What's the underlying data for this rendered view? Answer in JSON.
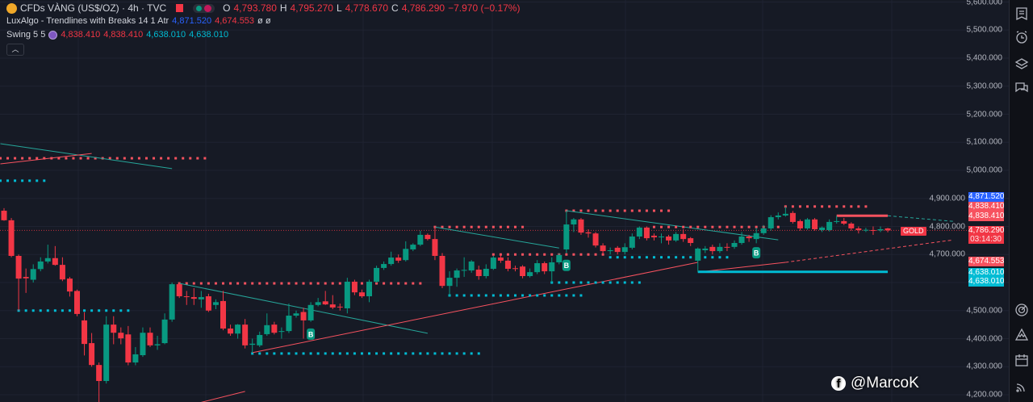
{
  "header": {
    "symbol_title": "CFDs VÀNG (US$/OZ) · 4h · TVC",
    "ohlc": {
      "o_label": "O",
      "o": "4,793.780",
      "h_label": "H",
      "h": "4,795.270",
      "l_label": "L",
      "l": "4,778.670",
      "c_label": "C",
      "c": "4,786.290",
      "change": "−7.970 (−0.17%)"
    },
    "indicator1": {
      "name": "LuxAlgo - Trendlines with Breaks 14 1 Atr",
      "v1": "4,871.520",
      "v2": "4,674.553",
      "v3": "ø ø"
    },
    "indicator2": {
      "name": "Swing 5 5",
      "v1": "4,838.410",
      "v2": "4,838.410",
      "v3": "4,638.010",
      "v4": "4,638.010"
    },
    "collapse_icon": "chevron-up-icon"
  },
  "price_axis": {
    "ticks": [
      "5,600.000",
      "5,500.000",
      "5,400.000",
      "5,300.000",
      "5,200.000",
      "5,100.000",
      "5,000.000",
      "4,900.000",
      "4,800.000",
      "4,700.000",
      "4,500.000",
      "4,400.000",
      "4,300.000",
      "4,200.000"
    ],
    "tags": [
      {
        "text": "4,871.520",
        "color": "#2962ff"
      },
      {
        "text": "4,838.410",
        "color": "#f7525f"
      },
      {
        "text": "4,838.410",
        "color": "#f7525f"
      },
      {
        "text": "4,674.553",
        "color": "#f7525f"
      },
      {
        "text": "4,638.010",
        "color": "#00bcd4"
      },
      {
        "text": "4,638.010",
        "color": "#00bcd4"
      }
    ],
    "current": {
      "symbol": "GOLD",
      "price": "4,786.290",
      "countdown": "03:14:30",
      "color": "#f23645"
    }
  },
  "chart_data": {
    "type": "candlestick",
    "price_range": [
      4160,
      5610
    ],
    "grid": true,
    "colors": {
      "up": "#089981",
      "down": "#f23645",
      "background": "#161a25"
    },
    "ohlc": [
      [
        4856,
        4865,
        4820,
        4822
      ],
      [
        4822,
        4830,
        4690,
        4695
      ],
      [
        4695,
        4700,
        4500,
        4614
      ],
      [
        4620,
        4650,
        4563,
        4615
      ],
      [
        4610,
        4665,
        4600,
        4648
      ],
      [
        4648,
        4690,
        4640,
        4675
      ],
      [
        4675,
        4735,
        4668,
        4687
      ],
      [
        4687,
        4730,
        4660,
        4663
      ],
      [
        4663,
        4690,
        4605,
        4611
      ],
      [
        4614,
        4620,
        4550,
        4568
      ],
      [
        4570,
        4575,
        4480,
        4488
      ],
      [
        4465,
        4494,
        4340,
        4381
      ],
      [
        4384,
        4420,
        4300,
        4306
      ],
      [
        4306,
        4315,
        4174,
        4249
      ],
      [
        4249,
        4480,
        4240,
        4450
      ],
      [
        4450,
        4480,
        4380,
        4421
      ],
      [
        4421,
        4440,
        4380,
        4401
      ],
      [
        4415,
        4445,
        4305,
        4315
      ],
      [
        4315,
        4370,
        4305,
        4344
      ],
      [
        4341,
        4440,
        4335,
        4421
      ],
      [
        4421,
        4440,
        4370,
        4376
      ],
      [
        4376,
        4410,
        4360,
        4380
      ],
      [
        4384,
        4490,
        4380,
        4468
      ],
      [
        4468,
        4600,
        4460,
        4594
      ],
      [
        4594,
        4600,
        4545,
        4551
      ],
      [
        4551,
        4570,
        4520,
        4548
      ],
      [
        4548,
        4580,
        4520,
        4542
      ],
      [
        4540,
        4570,
        4510,
        4548
      ],
      [
        4551,
        4560,
        4495,
        4500
      ],
      [
        4520,
        4540,
        4505,
        4530
      ],
      [
        4534,
        4570,
        4430,
        4436
      ],
      [
        4436,
        4450,
        4410,
        4418
      ],
      [
        4418,
        4452,
        4400,
        4450
      ],
      [
        4450,
        4470,
        4365,
        4376
      ],
      [
        4378,
        4400,
        4350,
        4382
      ],
      [
        4376,
        4425,
        4370,
        4413
      ],
      [
        4416,
        4490,
        4410,
        4448
      ],
      [
        4450,
        4460,
        4415,
        4421
      ],
      [
        4424,
        4440,
        4400,
        4427
      ],
      [
        4427,
        4525,
        4420,
        4482
      ],
      [
        4482,
        4500,
        4475,
        4490
      ],
      [
        4495,
        4510,
        4400,
        4465
      ],
      [
        4465,
        4530,
        4460,
        4520
      ],
      [
        4520,
        4545,
        4515,
        4530
      ],
      [
        4533,
        4570,
        4520,
        4522
      ],
      [
        4522,
        4555,
        4505,
        4511
      ],
      [
        4514,
        4525,
        4500,
        4512
      ],
      [
        4508,
        4617,
        4490,
        4603
      ],
      [
        4603,
        4610,
        4555,
        4565
      ],
      [
        4565,
        4575,
        4545,
        4551
      ],
      [
        4551,
        4610,
        4530,
        4603
      ],
      [
        4603,
        4660,
        4598,
        4652
      ],
      [
        4652,
        4675,
        4645,
        4666
      ],
      [
        4666,
        4710,
        4660,
        4689
      ],
      [
        4689,
        4700,
        4670,
        4678
      ],
      [
        4680,
        4747,
        4675,
        4720
      ],
      [
        4718,
        4740,
        4712,
        4735
      ],
      [
        4735,
        4785,
        4730,
        4770
      ],
      [
        4770,
        4775,
        4750,
        4755
      ],
      [
        4755,
        4798,
        4680,
        4695
      ],
      [
        4695,
        4705,
        4580,
        4588
      ],
      [
        4588,
        4640,
        4551,
        4617
      ],
      [
        4617,
        4650,
        4585,
        4643
      ],
      [
        4643,
        4690,
        4620,
        4645
      ],
      [
        4643,
        4680,
        4635,
        4675
      ],
      [
        4646,
        4660,
        4610,
        4623
      ],
      [
        4623,
        4665,
        4615,
        4649
      ],
      [
        4649,
        4695,
        4645,
        4689
      ],
      [
        4689,
        4700,
        4670,
        4678
      ],
      [
        4678,
        4690,
        4640,
        4649
      ],
      [
        4651,
        4660,
        4640,
        4649
      ],
      [
        4657,
        4662,
        4615,
        4623
      ],
      [
        4623,
        4650,
        4618,
        4637
      ],
      [
        4637,
        4680,
        4630,
        4669
      ],
      [
        4669,
        4675,
        4630,
        4640
      ],
      [
        4640,
        4690,
        4600,
        4672
      ],
      [
        4672,
        4705,
        4665,
        4698
      ],
      [
        4718,
        4856,
        4705,
        4807
      ],
      [
        4807,
        4830,
        4780,
        4825
      ],
      [
        4825,
        4830,
        4770,
        4778
      ],
      [
        4779,
        4790,
        4760,
        4775
      ],
      [
        4775,
        4780,
        4725,
        4732
      ],
      [
        4732,
        4740,
        4700,
        4712
      ],
      [
        4712,
        4725,
        4700,
        4715
      ],
      [
        4724,
        4730,
        4700,
        4709
      ],
      [
        4709,
        4740,
        4700,
        4726
      ],
      [
        4724,
        4775,
        4718,
        4764
      ],
      [
        4764,
        4800,
        4755,
        4796
      ],
      [
        4796,
        4800,
        4750,
        4758
      ],
      [
        4767,
        4775,
        4750,
        4761
      ],
      [
        4764,
        4775,
        4740,
        4764
      ],
      [
        4764,
        4770,
        4735,
        4750
      ],
      [
        4750,
        4780,
        4745,
        4773
      ],
      [
        4773,
        4790,
        4745,
        4755
      ],
      [
        4758,
        4762,
        4730,
        4741
      ],
      [
        4678,
        4725,
        4637,
        4721
      ],
      [
        4715,
        4730,
        4705,
        4721
      ],
      [
        4727,
        4735,
        4700,
        4712
      ],
      [
        4712,
        4740,
        4705,
        4727
      ],
      [
        4727,
        4740,
        4712,
        4726
      ],
      [
        4727,
        4750,
        4720,
        4741
      ],
      [
        4741,
        4780,
        4735,
        4764
      ],
      [
        4764,
        4770,
        4745,
        4758
      ],
      [
        4755,
        4795,
        4740,
        4776
      ],
      [
        4776,
        4805,
        4770,
        4793
      ],
      [
        4793,
        4840,
        4785,
        4833
      ],
      [
        4833,
        4850,
        4825,
        4839
      ],
      [
        4839,
        4871,
        4835,
        4845
      ],
      [
        4848,
        4855,
        4810,
        4816
      ],
      [
        4819,
        4825,
        4785,
        4793
      ],
      [
        4793,
        4830,
        4788,
        4825
      ],
      [
        4825,
        4830,
        4785,
        4790
      ],
      [
        4787,
        4800,
        4780,
        4796
      ],
      [
        4787,
        4825,
        4782,
        4816
      ],
      [
        4816,
        4838,
        4810,
        4819
      ],
      [
        4819,
        4830,
        4805,
        4810
      ],
      [
        4810,
        4815,
        4785,
        4793
      ],
      [
        4793,
        4800,
        4775,
        4787
      ],
      [
        4787,
        4795,
        4780,
        4788
      ],
      [
        4787,
        4800,
        4770,
        4786
      ],
      [
        4786,
        4800,
        4780,
        4790
      ],
      [
        4793,
        4795,
        4779,
        4786
      ]
    ],
    "overlays": [
      {
        "kind": "dots",
        "color": "#f7525f",
        "price": 5043,
        "from": -0.5,
        "to": 28
      },
      {
        "kind": "dots",
        "color": "#00bcd4",
        "price": 4963,
        "from": -0.5,
        "to": 6
      },
      {
        "kind": "line",
        "color": "#26a69a",
        "p1": 5095,
        "p2": 5006,
        "from": -0.5,
        "to": 23
      },
      {
        "kind": "line",
        "color": "#f7525f",
        "p1": 5023,
        "p2": 5060,
        "from": -0.5,
        "to": 12
      },
      {
        "kind": "dots",
        "color": "#00bcd4",
        "price": 4500,
        "from": 2,
        "to": 17
      },
      {
        "kind": "dots",
        "color": "#f7525f",
        "price": 4597,
        "from": 24,
        "to": 58
      },
      {
        "kind": "line",
        "color": "#26a69a",
        "p1": 4597,
        "p2": 4419,
        "from": 24,
        "to": 58
      },
      {
        "kind": "dots",
        "color": "#00bcd4",
        "price": 4347,
        "from": 34,
        "to": 65
      },
      {
        "kind": "line",
        "color": "#f7525f",
        "p1": 4350,
        "p2": 4672,
        "from": 34,
        "to": 95
      },
      {
        "kind": "line",
        "color": "#f7525f",
        "p1": 4160,
        "p2": 4212,
        "from": 25,
        "to": 33
      },
      {
        "kind": "dots",
        "color": "#f7525f",
        "price": 4798,
        "from": 59,
        "to": 71
      },
      {
        "kind": "dots",
        "color": "#00bcd4",
        "price": 4554,
        "from": 61,
        "to": 79
      },
      {
        "kind": "line",
        "color": "#26a69a",
        "p1": 4798,
        "p2": 4723,
        "from": 59,
        "to": 76
      },
      {
        "kind": "dots",
        "color": "#f7525f",
        "price": 4700,
        "from": 67,
        "to": 82
      },
      {
        "kind": "dots",
        "color": "#f7525f",
        "price": 4856,
        "from": 77,
        "to": 91
      },
      {
        "kind": "dots",
        "color": "#00bcd4",
        "price": 4600,
        "from": 75,
        "to": 87
      },
      {
        "kind": "dots",
        "color": "#00bcd4",
        "price": 4690,
        "from": 83,
        "to": 99
      },
      {
        "kind": "line",
        "color": "#26a69a",
        "p1": 4856,
        "p2": 4752,
        "from": 77,
        "to": 106
      },
      {
        "kind": "dots",
        "color": "#f7525f",
        "price": 4798,
        "from": 89,
        "to": 106
      },
      {
        "kind": "line",
        "color": "#f7525f",
        "p1": 4637,
        "p2": 4672,
        "from": 95,
        "to": 107
      },
      {
        "kind": "dashed",
        "color": "#f7525f",
        "p1": 4672,
        "p2": 4752,
        "from": 107,
        "to": 130
      },
      {
        "kind": "dots",
        "color": "#f7525f",
        "price": 4871,
        "from": 107,
        "to": 118
      },
      {
        "kind": "bar",
        "color": "#f7525f",
        "price": 4838,
        "from": 114,
        "to": 121
      },
      {
        "kind": "dashed",
        "color": "#26a69a",
        "p1": 4838,
        "p2": 4818,
        "from": 121,
        "to": 130
      },
      {
        "kind": "bar",
        "color": "#00bcd4",
        "price": 4638,
        "from": 95,
        "to": 121
      }
    ],
    "break_markers": [
      {
        "label": "B",
        "index": 42,
        "price": 4445
      },
      {
        "label": "B",
        "index": 77,
        "price": 4690
      },
      {
        "label": "B",
        "index": 103,
        "price": 4735
      }
    ]
  },
  "toolbar": {
    "icons": [
      "watchlist-icon",
      "alert-clock-icon",
      "layers-icon",
      "chat-icon",
      "target-icon",
      "ideas-icon",
      "calendar-icon",
      "broadcast-icon"
    ]
  },
  "watermark": {
    "text": "@MarcoK",
    "icon": "facebook-icon"
  }
}
